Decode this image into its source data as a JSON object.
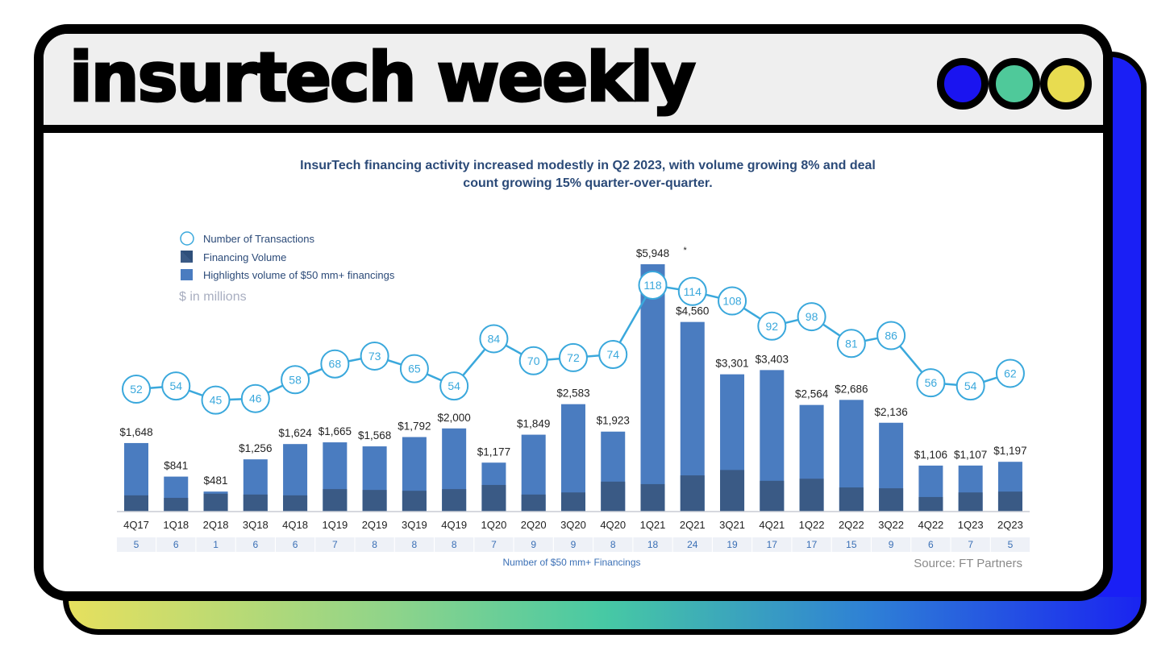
{
  "brand": {
    "title": "insurtech weekly",
    "dot_colors": [
      "#1a14f0",
      "#4fc99a",
      "#e8dc50"
    ]
  },
  "chart_data": {
    "type": "bar+line",
    "title": "InsurTech financing activity increased modestly in Q2 2023, with volume growing 8% and deal count growing 15% quarter-over-quarter.",
    "title_lines": [
      "InsurTech financing activity increased modestly in Q2 2023, with volume growing 8% and deal",
      "count growing 15% quarter-over-quarter."
    ],
    "units_note": "$ in millions",
    "legend": [
      {
        "label": "Number of Transactions",
        "marker": "circle"
      },
      {
        "label": "Financing Volume",
        "marker": "square-split"
      },
      {
        "label": "Highlights volume of $50 mm+ financings",
        "marker": "square"
      }
    ],
    "legend_position": "top-left",
    "categories": [
      "4Q17",
      "1Q18",
      "2Q18",
      "3Q18",
      "4Q18",
      "1Q19",
      "2Q19",
      "3Q19",
      "4Q19",
      "1Q20",
      "2Q20",
      "3Q20",
      "4Q20",
      "1Q21",
      "2Q21",
      "3Q21",
      "4Q21",
      "1Q22",
      "2Q22",
      "3Q22",
      "4Q22",
      "1Q23",
      "2Q23"
    ],
    "financing_volume": [
      1648,
      841,
      481,
      1256,
      1624,
      1665,
      1568,
      1792,
      2000,
      1177,
      1849,
      2583,
      1923,
      5948,
      4560,
      3301,
      3403,
      2564,
      2686,
      2136,
      1106,
      1107,
      1197
    ],
    "volume_labels": [
      "$1,648",
      "$841",
      "$481",
      "$1,256",
      "$1,624",
      "$1,665",
      "$1,568",
      "$1,792",
      "$2,000",
      "$1,177",
      "$1,849",
      "$2,583",
      "$1,923",
      "$5,948",
      "$4,560",
      "$3,301",
      "$3,403",
      "$2,564",
      "$2,686",
      "$2,136",
      "$1,106",
      "$1,107",
      "$1,197"
    ],
    "volume_label_notes": {
      "1Q21": "*"
    },
    "volume_under_50mm_est": [
      390,
      330,
      430,
      410,
      390,
      540,
      520,
      500,
      540,
      640,
      410,
      460,
      720,
      660,
      870,
      1000,
      740,
      790,
      580,
      560,
      350,
      460,
      480
    ],
    "number_of_transactions": [
      52,
      54,
      45,
      46,
      58,
      68,
      73,
      65,
      54,
      84,
      70,
      72,
      74,
      118,
      114,
      108,
      92,
      98,
      81,
      86,
      56,
      54,
      62
    ],
    "number_of_50mm_financings": [
      5,
      6,
      1,
      6,
      6,
      7,
      8,
      8,
      8,
      7,
      9,
      9,
      8,
      18,
      24,
      19,
      17,
      17,
      15,
      9,
      6,
      7,
      5
    ],
    "table_label": "Number of $50 mm+ Financings",
    "source": "Source: FT Partners",
    "colors": {
      "highlight": "#4a7cc0",
      "base": "#3a5a85",
      "line": "#3aa8dc",
      "title": "#2b4a78",
      "table_bg": "#eef1f7",
      "table_text": "#3a6fb5"
    },
    "ylim_volume": [
      0,
      6000
    ],
    "grid": false
  }
}
